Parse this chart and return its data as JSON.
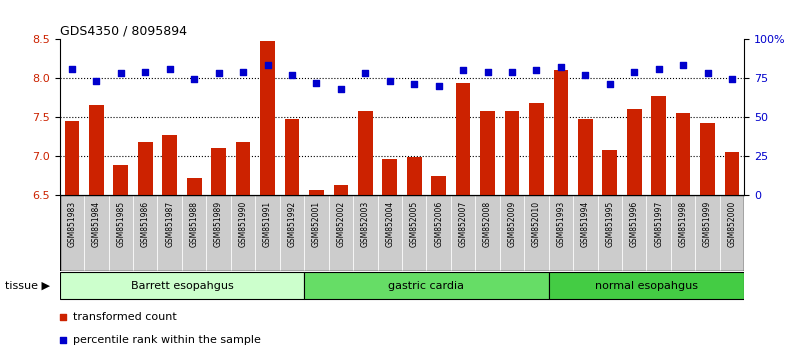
{
  "title": "GDS4350 / 8095894",
  "samples": [
    "GSM851983",
    "GSM851984",
    "GSM851985",
    "GSM851986",
    "GSM851987",
    "GSM851988",
    "GSM851989",
    "GSM851990",
    "GSM851991",
    "GSM851992",
    "GSM852001",
    "GSM852002",
    "GSM852003",
    "GSM852004",
    "GSM852005",
    "GSM852006",
    "GSM852007",
    "GSM852008",
    "GSM852009",
    "GSM852010",
    "GSM851993",
    "GSM851994",
    "GSM851995",
    "GSM851996",
    "GSM851997",
    "GSM851998",
    "GSM851999",
    "GSM852000"
  ],
  "bar_values": [
    7.45,
    7.65,
    6.88,
    7.18,
    7.27,
    6.72,
    7.1,
    7.18,
    8.47,
    7.47,
    6.56,
    6.62,
    7.57,
    6.96,
    6.98,
    6.74,
    7.94,
    7.58,
    7.57,
    7.68,
    8.1,
    7.47,
    7.08,
    7.6,
    7.77,
    7.55,
    7.42,
    7.05
  ],
  "dot_values": [
    81,
    73,
    78,
    79,
    81,
    74,
    78,
    79,
    83,
    77,
    72,
    68,
    78,
    73,
    71,
    70,
    80,
    79,
    79,
    80,
    82,
    77,
    71,
    79,
    81,
    83,
    78,
    74
  ],
  "groups": [
    {
      "label": "Barrett esopahgus",
      "start": 0,
      "end": 10,
      "color": "#ccffcc"
    },
    {
      "label": "gastric cardia",
      "start": 10,
      "end": 20,
      "color": "#66dd66"
    },
    {
      "label": "normal esopahgus",
      "start": 20,
      "end": 28,
      "color": "#44cc44"
    }
  ],
  "bar_color": "#cc2200",
  "dot_color": "#0000cc",
  "ylim_left": [
    6.5,
    8.5
  ],
  "ylim_right": [
    0,
    100
  ],
  "yticks_left": [
    6.5,
    7.0,
    7.5,
    8.0,
    8.5
  ],
  "yticks_right": [
    0,
    25,
    50,
    75,
    100
  ],
  "ytick_labels_right": [
    "0",
    "25",
    "50",
    "75",
    "100%"
  ],
  "hlines": [
    7.0,
    7.5,
    8.0
  ],
  "tissue_label": "tissue",
  "tissue_arrow": "▶",
  "legend_bar": "transformed count",
  "legend_dot": "percentile rank within the sample",
  "xticklabel_bg": "#cccccc",
  "xticklabel_fontsize": 5.5,
  "bar_width": 0.6,
  "title_fontsize": 9,
  "ytick_fontsize": 8,
  "legend_fontsize": 8,
  "group_fontsize": 8,
  "tissue_fontsize": 8
}
